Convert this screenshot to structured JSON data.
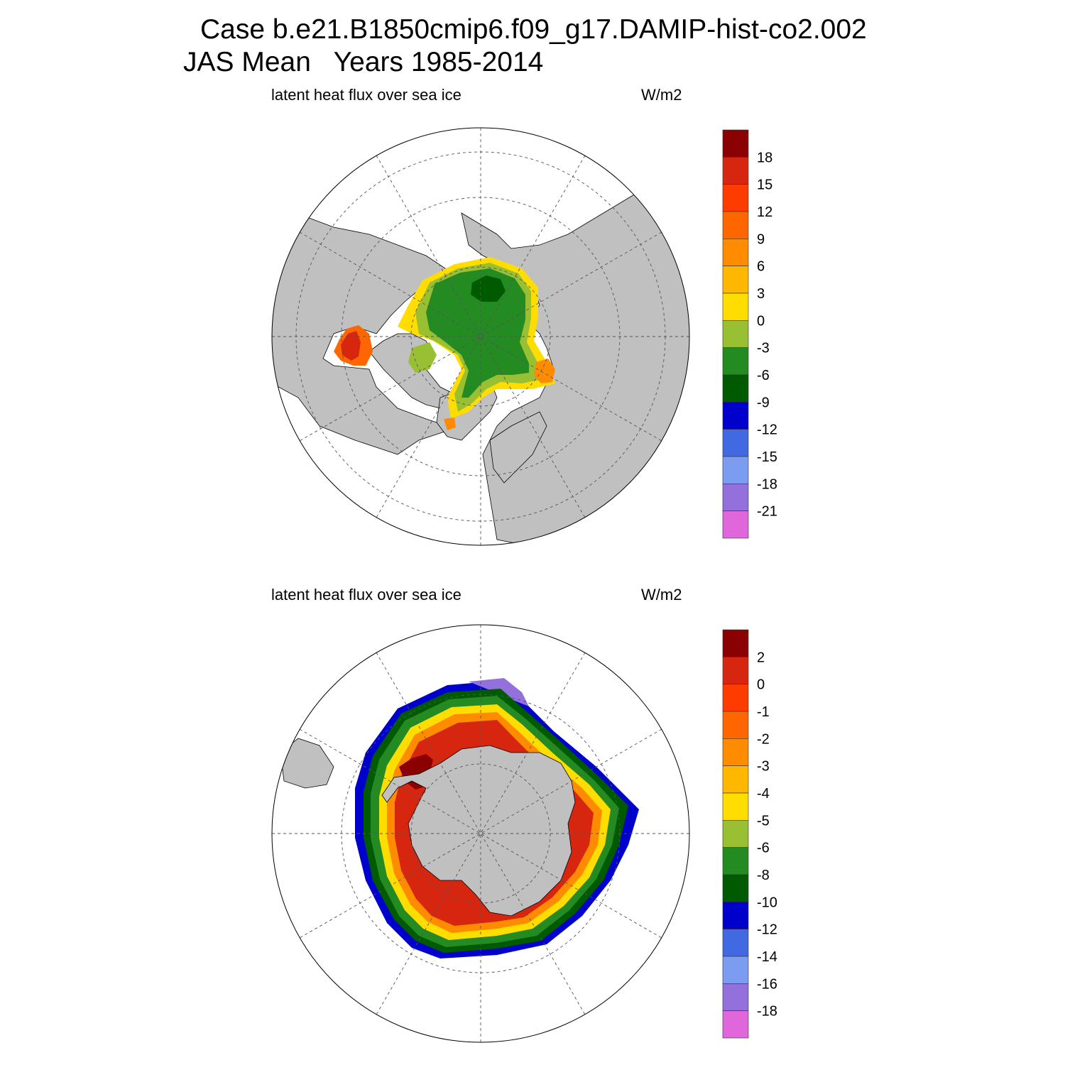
{
  "header": {
    "line1": "Case b.e21.B1850cmip6.f09_g17.DAMIP-hist-co2.002",
    "line2": "JAS Mean   Years 1985-2014"
  },
  "panels": [
    {
      "hemisphere": "north",
      "variable_label": "latent heat flux over sea ice",
      "units_label": "W/m2",
      "colorbar": {
        "labels": [
          "18",
          "15",
          "12",
          "9",
          "6",
          "3",
          "0",
          "-3",
          "-6",
          "-9",
          "-12",
          "-15",
          "-18",
          "-21"
        ],
        "colors": [
          "#8b0000",
          "#d7260f",
          "#ff3c00",
          "#ff6600",
          "#ff8c00",
          "#ffb700",
          "#ffdd00",
          "#99bf33",
          "#238b22",
          "#005a00",
          "#0000cd",
          "#4169e1",
          "#7b9cf0",
          "#9370db",
          "#e066db"
        ]
      }
    },
    {
      "hemisphere": "south",
      "variable_label": "latent heat flux over sea ice",
      "units_label": "W/m2",
      "colorbar": {
        "labels": [
          "2",
          "0",
          "-1",
          "-2",
          "-3",
          "-4",
          "-5",
          "-6",
          "-8",
          "-10",
          "-12",
          "-14",
          "-16",
          "-18"
        ],
        "colors": [
          "#8b0000",
          "#d7260f",
          "#ff3c00",
          "#ff6600",
          "#ff8c00",
          "#ffb700",
          "#ffdd00",
          "#99bf33",
          "#238b22",
          "#005a00",
          "#0000cd",
          "#4169e1",
          "#7b9cf0",
          "#9370db",
          "#e066db"
        ]
      }
    }
  ],
  "colors": {
    "land": "#c0c0c0",
    "ocean": "#ffffff",
    "grid": "#555555"
  }
}
